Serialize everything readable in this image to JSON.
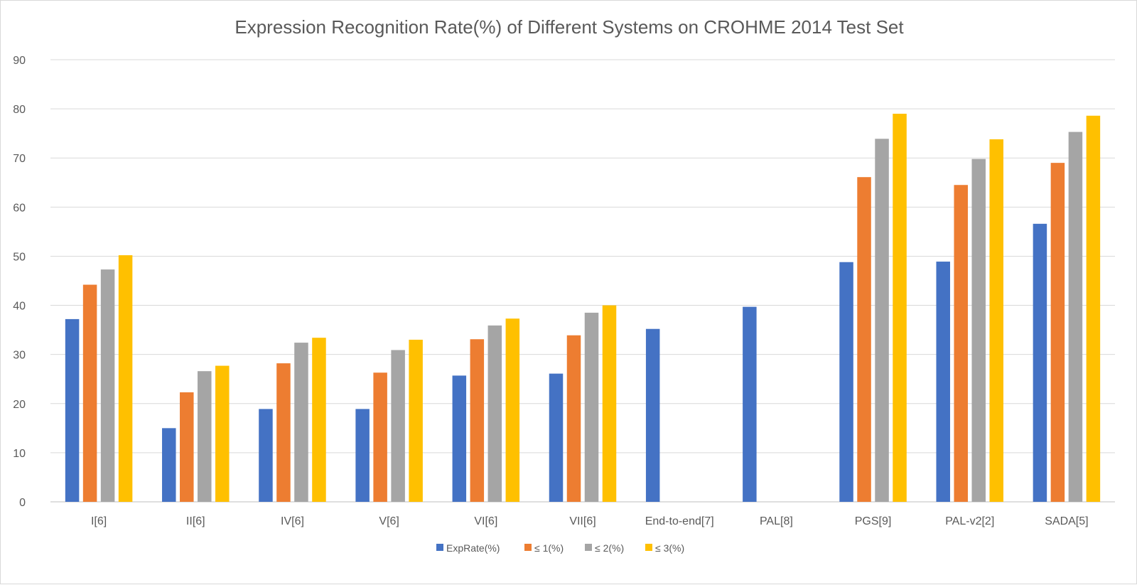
{
  "chart_data": {
    "type": "bar",
    "title": "Expression Recognition Rate(%) of Different Systems on CROHME 2014 Test Set",
    "xlabel": "",
    "ylabel": "",
    "ylim": [
      0,
      90
    ],
    "yticks": [
      0,
      10,
      20,
      30,
      40,
      50,
      60,
      70,
      80,
      90
    ],
    "grid": true,
    "legend_position": "bottom",
    "categories": [
      "I[6]",
      "II[6]",
      "IV[6]",
      "V[6]",
      "VI[6]",
      "VII[6]",
      "End-to-end[7]",
      "PAL[8]",
      "PGS[9]",
      "PAL-v2[2]",
      "SADA[5]"
    ],
    "series": [
      {
        "name": "ExpRate(%)",
        "color": "#4472c4",
        "values": [
          37.2,
          15.0,
          18.9,
          18.9,
          25.7,
          26.1,
          35.2,
          39.7,
          48.8,
          48.9,
          56.6
        ]
      },
      {
        "name": "≤ 1(%)",
        "color": "#ed7d31",
        "values": [
          44.2,
          22.3,
          28.2,
          26.3,
          33.1,
          33.9,
          null,
          null,
          66.1,
          64.5,
          69.0
        ]
      },
      {
        "name": "≤ 2(%)",
        "color": "#a5a5a5",
        "values": [
          47.3,
          26.6,
          32.4,
          30.9,
          35.9,
          38.5,
          null,
          null,
          73.9,
          69.8,
          75.3
        ]
      },
      {
        "name": "≤ 3(%)",
        "color": "#ffc000",
        "values": [
          50.2,
          27.7,
          33.4,
          33.0,
          37.3,
          40.0,
          null,
          null,
          79.0,
          73.8,
          78.6
        ]
      }
    ]
  }
}
